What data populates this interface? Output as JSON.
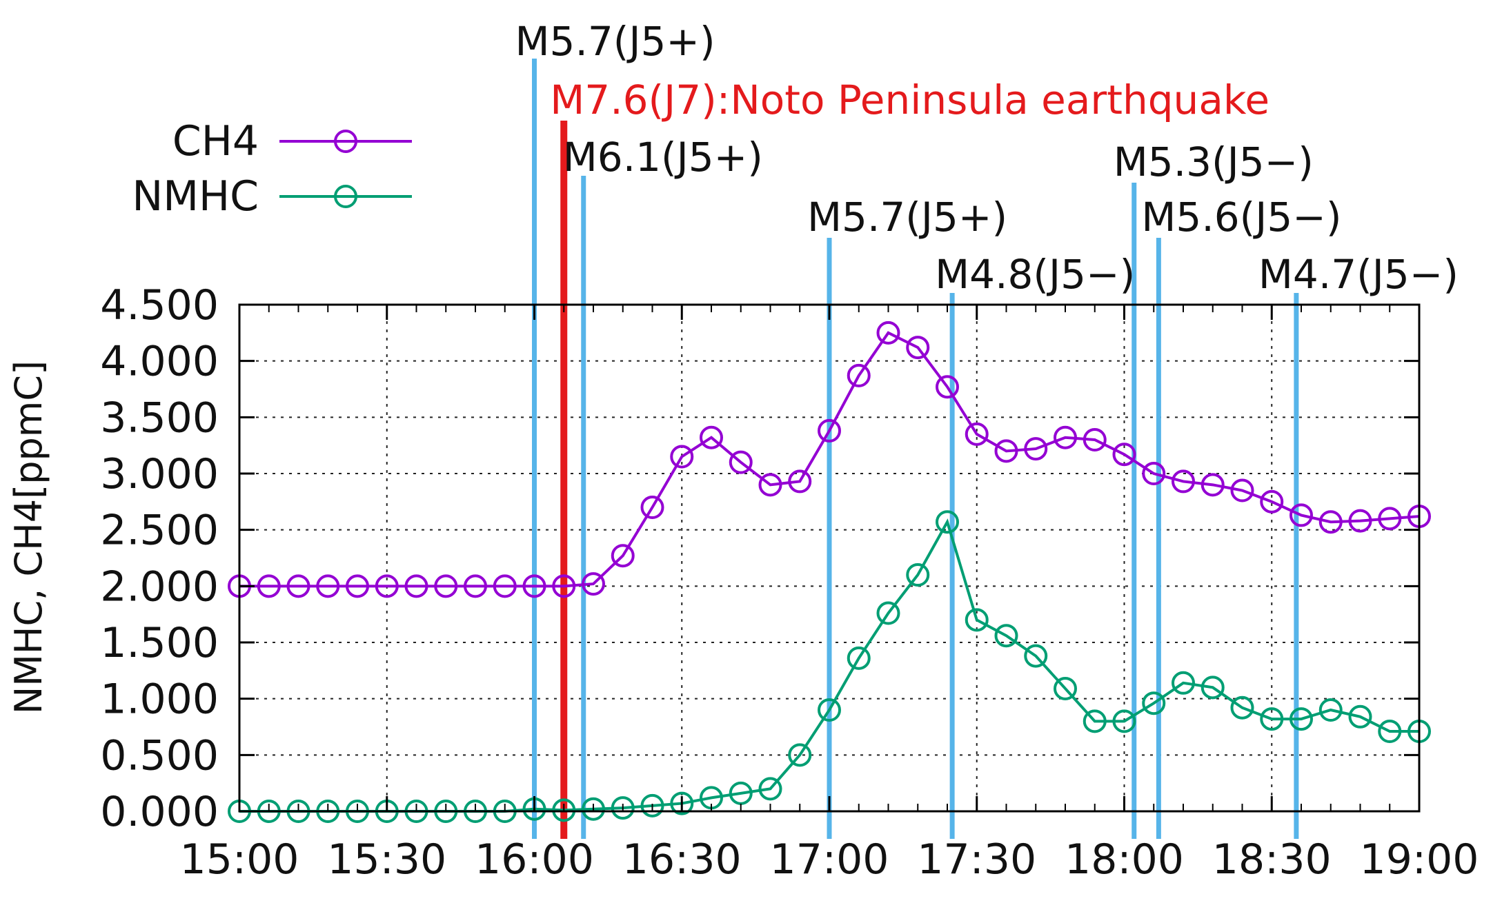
{
  "chart_data": {
    "type": "line",
    "title": "",
    "xlabel": "",
    "ylabel": "NMHC, CH4[ppmC]",
    "xlim": [
      "15:00",
      "19:00"
    ],
    "ylim": [
      0,
      4.5
    ],
    "x_ticks": [
      "15:00",
      "15:30",
      "16:00",
      "16:30",
      "17:00",
      "17:30",
      "18:00",
      "18:30",
      "19:00"
    ],
    "y_ticks": [
      "0.000",
      "0.500",
      "1.000",
      "1.500",
      "2.000",
      "2.500",
      "3.000",
      "3.500",
      "4.000",
      "4.500"
    ],
    "grid": true,
    "legend_position": "top-left",
    "x": [
      "15:00",
      "15:06",
      "15:12",
      "15:18",
      "15:24",
      "15:30",
      "15:36",
      "15:42",
      "15:48",
      "15:54",
      "16:00",
      "16:06",
      "16:12",
      "16:18",
      "16:24",
      "16:30",
      "16:36",
      "16:42",
      "16:48",
      "16:54",
      "17:00",
      "17:06",
      "17:12",
      "17:18",
      "17:24",
      "17:30",
      "17:36",
      "17:42",
      "17:48",
      "17:54",
      "18:00",
      "18:06",
      "18:12",
      "18:18",
      "18:24",
      "18:30",
      "18:36",
      "18:42",
      "18:48",
      "18:54",
      "19:00"
    ],
    "series": [
      {
        "name": "CH4",
        "color": "#9400d3",
        "values": [
          2.0,
          2.0,
          2.0,
          2.0,
          2.0,
          2.0,
          2.0,
          2.0,
          2.0,
          2.0,
          2.0,
          2.0,
          2.02,
          2.27,
          2.7,
          3.15,
          3.32,
          3.1,
          2.9,
          2.93,
          3.38,
          3.87,
          4.25,
          4.12,
          3.77,
          3.35,
          3.2,
          3.22,
          3.32,
          3.3,
          3.17,
          3.0,
          2.93,
          2.9,
          2.85,
          2.75,
          2.63,
          2.57,
          2.58,
          2.6,
          2.62
        ]
      },
      {
        "name": "NMHC",
        "color": "#009e73",
        "values": [
          0.0,
          0.0,
          0.0,
          0.0,
          0.0,
          0.0,
          0.0,
          0.0,
          0.0,
          0.0,
          0.02,
          0.01,
          0.02,
          0.03,
          0.05,
          0.07,
          0.12,
          0.16,
          0.2,
          0.5,
          0.9,
          1.36,
          1.76,
          2.1,
          2.57,
          1.7,
          1.56,
          1.38,
          1.09,
          0.8,
          0.8,
          0.96,
          1.14,
          1.1,
          0.92,
          0.82,
          0.82,
          0.9,
          0.84,
          0.71,
          0.71
        ]
      }
    ],
    "events": [
      {
        "time": "16:00",
        "label": "M5.7(J5+)",
        "color": "#56b4e9"
      },
      {
        "time": "16:06",
        "label": "M7.6(J7):Noto Peninsula earthquake",
        "color": "#e41a1c"
      },
      {
        "time": "16:10",
        "label": "M6.1(J5+)",
        "color": "#56b4e9"
      },
      {
        "time": "17:00",
        "label": "M5.7(J5+)",
        "color": "#56b4e9"
      },
      {
        "time": "17:25",
        "label": "M4.8(J5−)",
        "color": "#56b4e9"
      },
      {
        "time": "18:02",
        "label": "M5.3(J5−)",
        "color": "#56b4e9"
      },
      {
        "time": "18:07",
        "label": "M5.6(J5−)",
        "color": "#56b4e9"
      },
      {
        "time": "18:35",
        "label": "M4.7(J5−)",
        "color": "#56b4e9"
      }
    ]
  }
}
